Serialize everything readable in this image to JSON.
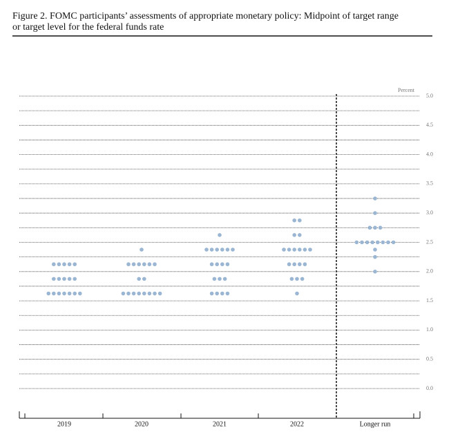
{
  "chart_data": {
    "type": "dot",
    "title_lines": [
      "Figure 2.  FOMC participants’ assessments of appropriate monetary policy:  Midpoint of target range",
      "or target level for the federal funds rate"
    ],
    "y_unit": "Percent",
    "ylim": [
      0,
      5
    ],
    "yticks": [
      {
        "value": 0,
        "label": "0.0"
      },
      {
        "value": 0.5,
        "label": "0.5"
      },
      {
        "value": 1,
        "label": "1.0"
      },
      {
        "value": 1.5,
        "label": "1.5"
      },
      {
        "value": 2,
        "label": "2.0"
      },
      {
        "value": 2.5,
        "label": "2.5"
      },
      {
        "value": 3,
        "label": "3.0"
      },
      {
        "value": 3.5,
        "label": "3.5"
      },
      {
        "value": 4,
        "label": "4.0"
      },
      {
        "value": 4.5,
        "label": "4.5"
      },
      {
        "value": 5,
        "label": "5.0"
      }
    ],
    "grid_yticks": [
      0,
      0.25,
      0.5,
      0.75,
      1,
      1.25,
      1.5,
      1.75,
      2,
      2.25,
      2.5,
      2.75,
      3,
      3.25,
      3.5,
      3.75,
      4,
      4.25,
      4.5,
      4.75,
      5
    ],
    "color": "#9ab6d3",
    "categories": [
      "2019",
      "2020",
      "2021",
      "2022",
      "Longer run"
    ],
    "dots": [
      [
        {
          "rate": 2.125,
          "count": 5
        },
        {
          "rate": 1.875,
          "count": 5
        },
        {
          "rate": 1.625,
          "count": 7
        }
      ],
      [
        {
          "rate": 2.375,
          "count": 1
        },
        {
          "rate": 2.125,
          "count": 6
        },
        {
          "rate": 1.875,
          "count": 2
        },
        {
          "rate": 1.625,
          "count": 8
        }
      ],
      [
        {
          "rate": 2.625,
          "count": 1
        },
        {
          "rate": 2.375,
          "count": 6
        },
        {
          "rate": 2.125,
          "count": 4
        },
        {
          "rate": 1.875,
          "count": 3
        },
        {
          "rate": 1.625,
          "count": 4
        }
      ],
      [
        {
          "rate": 2.875,
          "count": 2
        },
        {
          "rate": 2.625,
          "count": 2
        },
        {
          "rate": 2.375,
          "count": 6
        },
        {
          "rate": 2.125,
          "count": 4
        },
        {
          "rate": 1.875,
          "count": 3
        },
        {
          "rate": 1.625,
          "count": 1
        }
      ],
      [
        {
          "rate": 3.25,
          "count": 1
        },
        {
          "rate": 3,
          "count": 1
        },
        {
          "rate": 2.75,
          "count": 3
        },
        {
          "rate": 2.5,
          "count": 8
        },
        {
          "rate": 2.375,
          "count": 1
        },
        {
          "rate": 2.25,
          "count": 1
        },
        {
          "rate": 2,
          "count": 1
        }
      ]
    ]
  }
}
